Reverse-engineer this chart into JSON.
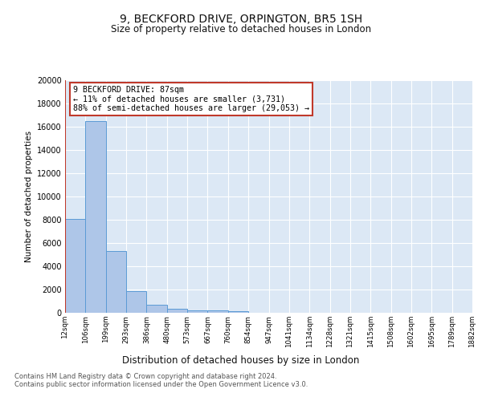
{
  "title": "9, BECKFORD DRIVE, ORPINGTON, BR5 1SH",
  "subtitle": "Size of property relative to detached houses in London",
  "xlabel": "Distribution of detached houses by size in London",
  "ylabel": "Number of detached properties",
  "bar_values": [
    8050,
    16500,
    5300,
    1850,
    700,
    330,
    220,
    190,
    150,
    0,
    0,
    0,
    0,
    0,
    0,
    0,
    0,
    0,
    0,
    0
  ],
  "bar_labels": [
    "12sqm",
    "106sqm",
    "199sqm",
    "293sqm",
    "386sqm",
    "480sqm",
    "573sqm",
    "667sqm",
    "760sqm",
    "854sqm",
    "947sqm",
    "1041sqm",
    "1134sqm",
    "1228sqm",
    "1321sqm",
    "1415sqm",
    "1508sqm",
    "1602sqm",
    "1695sqm",
    "1789sqm",
    "1882sqm"
  ],
  "bar_color": "#aec6e8",
  "bar_edge_color": "#5b9bd5",
  "marker_color": "#c0392b",
  "ylim": [
    0,
    20000
  ],
  "yticks": [
    0,
    2000,
    4000,
    6000,
    8000,
    10000,
    12000,
    14000,
    16000,
    18000,
    20000
  ],
  "annotation_title": "9 BECKFORD DRIVE: 87sqm",
  "annotation_line1": "← 11% of detached houses are smaller (3,731)",
  "annotation_line2": "88% of semi-detached houses are larger (29,053) →",
  "annotation_box_color": "#ffffff",
  "annotation_box_edge": "#c0392b",
  "footer_line1": "Contains HM Land Registry data © Crown copyright and database right 2024.",
  "footer_line2": "Contains public sector information licensed under the Open Government Licence v3.0.",
  "bg_color": "#dce8f5",
  "fig_bg_color": "#ffffff",
  "num_bars": 20
}
